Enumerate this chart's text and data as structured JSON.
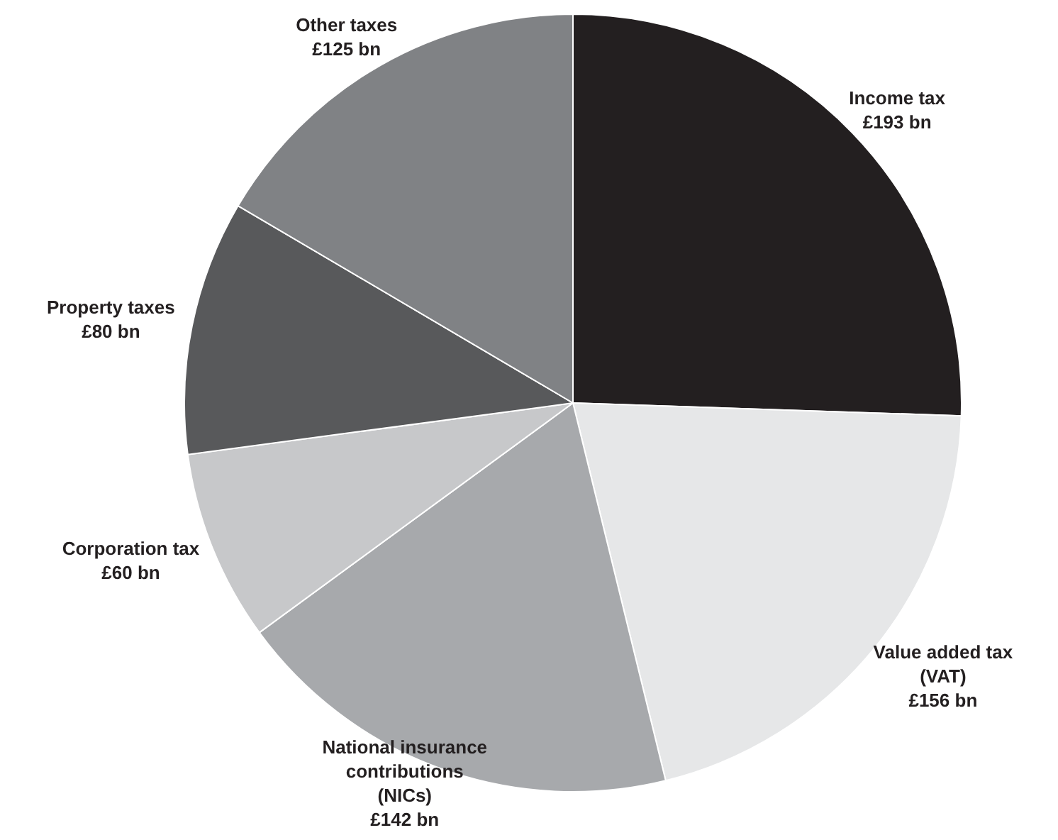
{
  "chart_data": {
    "type": "pie",
    "categories": [
      "Income tax",
      "Value added tax (VAT)",
      "National insurance contributions (NICs)",
      "Corporation tax",
      "Property taxes",
      "Other taxes"
    ],
    "values": [
      193,
      156,
      142,
      60,
      80,
      125
    ],
    "value_labels": [
      "£193 bn",
      "£156 bn",
      "£142 bn",
      "£60 bn",
      "£80 bn",
      "£125 bn"
    ],
    "colors": [
      "#231f20",
      "#e6e7e8",
      "#a7a9ac",
      "#c7c8ca",
      "#58595b",
      "#808285"
    ]
  }
}
